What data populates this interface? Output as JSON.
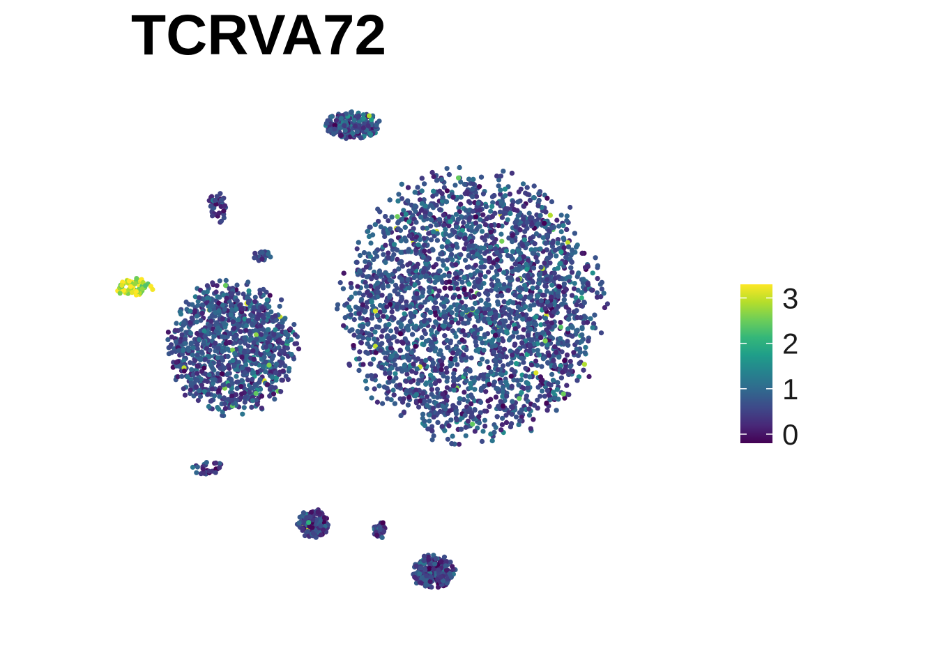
{
  "chart_data": {
    "type": "scatter",
    "title": "TCRVA72",
    "xlabel": "",
    "ylabel": "",
    "grid": false,
    "axes_visible": false,
    "legend_position": "right",
    "color_scale": {
      "palette": "viridis",
      "min": -0.2,
      "max": 3.3,
      "ticks": [
        0,
        1,
        2,
        3
      ],
      "tick_labels": [
        "0",
        "1",
        "2",
        "3"
      ],
      "stops": [
        "#440154",
        "#482878",
        "#3e4989",
        "#31688e",
        "#26828e",
        "#1f9e89",
        "#35b779",
        "#6ece58",
        "#b5de2b",
        "#fde725"
      ]
    },
    "clusters": [
      {
        "id": "main",
        "cx": 0.25,
        "cy": 0.2,
        "rx": 0.42,
        "ry": 0.47,
        "n": 4200,
        "level": 0.65
      },
      {
        "id": "left-large",
        "cx": -0.55,
        "cy": 0.05,
        "rx": 0.21,
        "ry": 0.23,
        "n": 1100,
        "level": 0.65
      },
      {
        "id": "top-small",
        "cx": -0.15,
        "cy": 0.85,
        "rx": 0.09,
        "ry": 0.05,
        "n": 220,
        "level": 0.7
      },
      {
        "id": "bottom-left",
        "cx": -0.28,
        "cy": -0.58,
        "rx": 0.05,
        "ry": 0.05,
        "n": 160,
        "level": 0.5
      },
      {
        "id": "bottom-center",
        "cx": 0.12,
        "cy": -0.75,
        "rx": 0.07,
        "ry": 0.06,
        "n": 230,
        "level": 0.5
      },
      {
        "id": "bottom-mid",
        "cx": -0.06,
        "cy": -0.6,
        "rx": 0.02,
        "ry": 0.03,
        "n": 40,
        "level": 0.5
      },
      {
        "id": "mait",
        "cx": -0.88,
        "cy": 0.27,
        "rx": 0.06,
        "ry": 0.03,
        "n": 70,
        "level": 3.0
      },
      {
        "id": "small-islands",
        "cx": -0.6,
        "cy": 0.55,
        "rx": 0.03,
        "ry": 0.06,
        "n": 40,
        "level": 0.5
      },
      {
        "id": "lower-strand",
        "cx": -0.63,
        "cy": -0.38,
        "rx": 0.06,
        "ry": 0.02,
        "n": 30,
        "level": 0.5
      },
      {
        "id": "mid-island",
        "cx": -0.45,
        "cy": 0.38,
        "rx": 0.03,
        "ry": 0.02,
        "n": 30,
        "level": 0.5
      }
    ]
  }
}
